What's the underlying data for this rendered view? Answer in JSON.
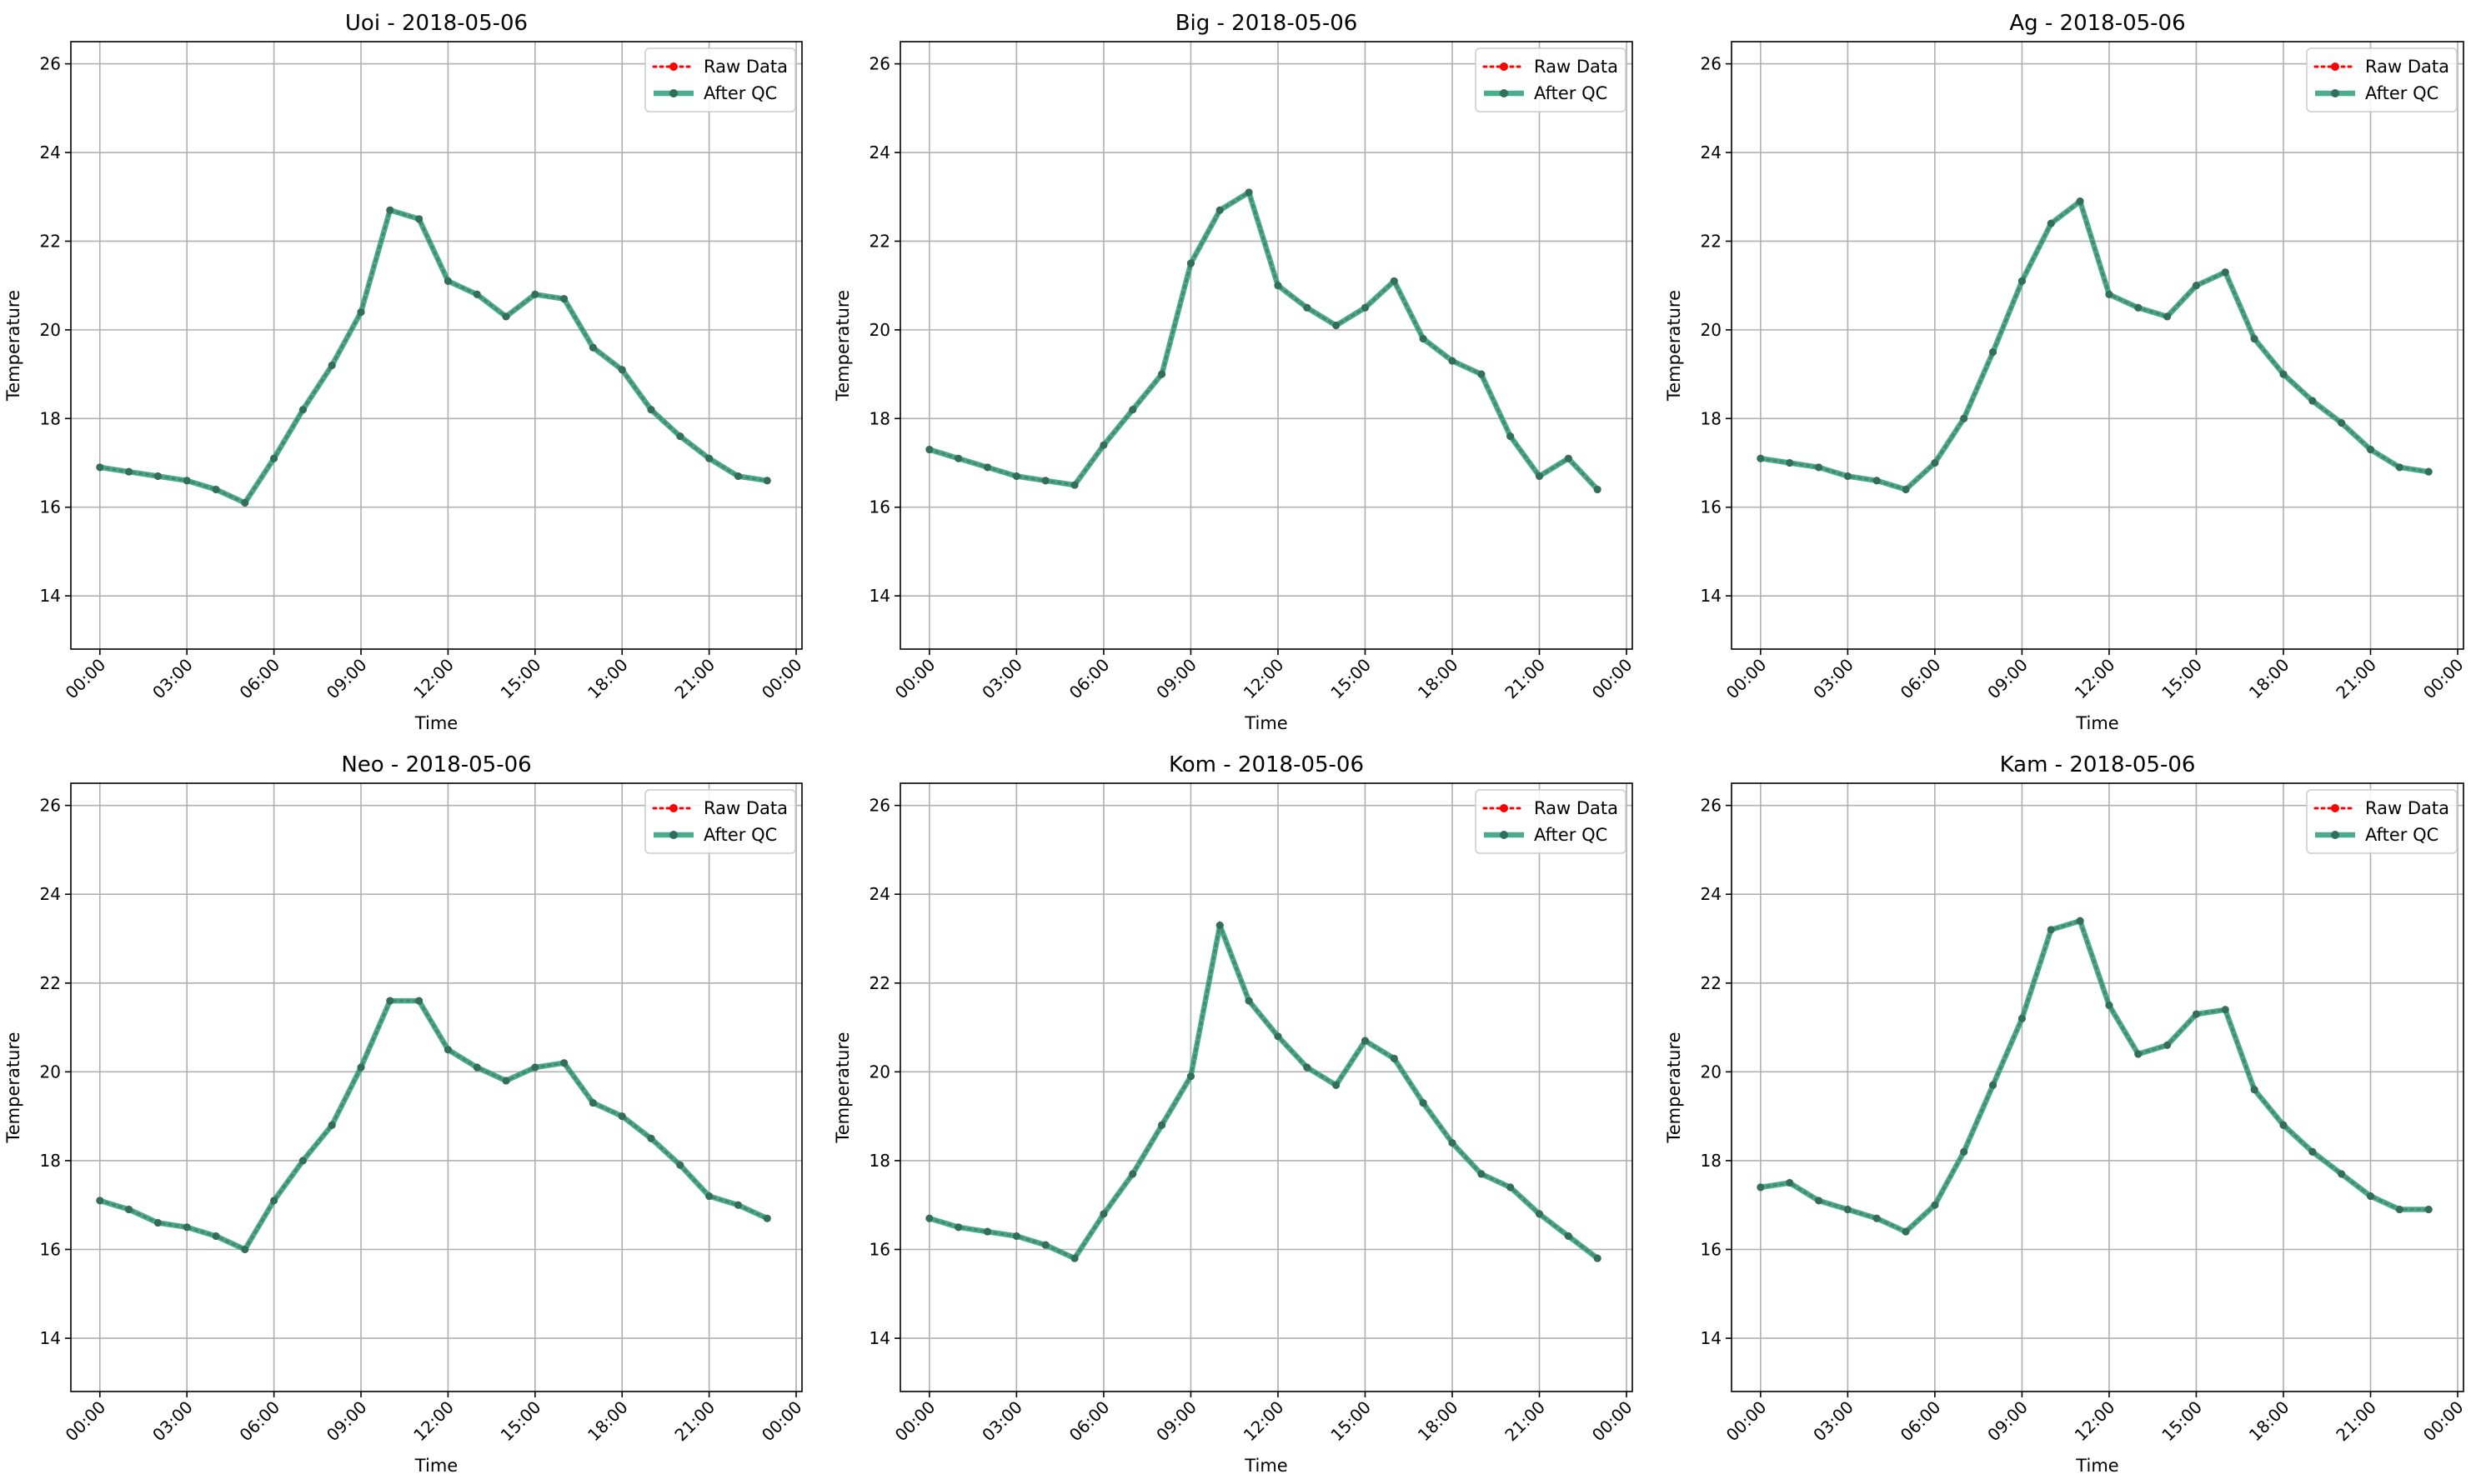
{
  "chart_data": [
    {
      "type": "line",
      "title": "Uoi - 2018-05-06",
      "xlabel": "Time",
      "ylabel": "Temperature",
      "ylim": [
        12.8,
        26.5
      ],
      "yticks": [
        14,
        16,
        18,
        20,
        22,
        24,
        26
      ],
      "xlim": [
        -1.0,
        24.2
      ],
      "xtick_positions": [
        0,
        3,
        6,
        9,
        12,
        15,
        18,
        21,
        24
      ],
      "xtick_labels": [
        "00:00",
        "03:00",
        "06:00",
        "09:00",
        "12:00",
        "15:00",
        "18:00",
        "21:00",
        "00:00"
      ],
      "grid": true,
      "legend_position": "top-right",
      "x": [
        0,
        1,
        2,
        3,
        4,
        5,
        6,
        7,
        8,
        9,
        10,
        11,
        12,
        13,
        14,
        15,
        16,
        17,
        18,
        19,
        20,
        21,
        22,
        23
      ],
      "series": [
        {
          "name": "Raw Data",
          "color": "#ff0000",
          "style": "dotted",
          "values": [
            16.9,
            16.8,
            16.7,
            16.6,
            16.4,
            16.1,
            17.1,
            18.2,
            19.2,
            20.4,
            22.7,
            22.5,
            21.1,
            20.8,
            20.3,
            20.8,
            20.7,
            19.6,
            19.1,
            18.2,
            17.6,
            17.1,
            16.7,
            16.6
          ]
        },
        {
          "name": "After QC",
          "color": "#2a9d7a",
          "style": "solid",
          "values": [
            16.9,
            16.8,
            16.7,
            16.6,
            16.4,
            16.1,
            17.1,
            18.2,
            19.2,
            20.4,
            22.7,
            22.5,
            21.1,
            20.8,
            20.3,
            20.8,
            20.7,
            19.6,
            19.1,
            18.2,
            17.6,
            17.1,
            16.7,
            16.6
          ]
        }
      ]
    },
    {
      "type": "line",
      "title": "Big - 2018-05-06",
      "xlabel": "Time",
      "ylabel": "Temperature",
      "ylim": [
        12.8,
        26.5
      ],
      "yticks": [
        14,
        16,
        18,
        20,
        22,
        24,
        26
      ],
      "xlim": [
        -1.0,
        24.2
      ],
      "xtick_positions": [
        0,
        3,
        6,
        9,
        12,
        15,
        18,
        21,
        24
      ],
      "xtick_labels": [
        "00:00",
        "03:00",
        "06:00",
        "09:00",
        "12:00",
        "15:00",
        "18:00",
        "21:00",
        "00:00"
      ],
      "grid": true,
      "legend_position": "top-right",
      "x": [
        0,
        1,
        2,
        3,
        4,
        5,
        6,
        7,
        8,
        9,
        10,
        11,
        12,
        13,
        14,
        15,
        16,
        17,
        18,
        19,
        20,
        21,
        22,
        23
      ],
      "series": [
        {
          "name": "Raw Data",
          "color": "#ff0000",
          "style": "dotted",
          "values": [
            17.3,
            17.1,
            16.9,
            16.7,
            16.6,
            16.5,
            17.4,
            18.2,
            19.0,
            21.5,
            22.7,
            23.1,
            21.0,
            20.5,
            20.1,
            20.5,
            21.1,
            19.8,
            19.3,
            19.0,
            17.6,
            16.7,
            17.1,
            16.4
          ]
        },
        {
          "name": "After QC",
          "color": "#2a9d7a",
          "style": "solid",
          "values": [
            17.3,
            17.1,
            16.9,
            16.7,
            16.6,
            16.5,
            17.4,
            18.2,
            19.0,
            21.5,
            22.7,
            23.1,
            21.0,
            20.5,
            20.1,
            20.5,
            21.1,
            19.8,
            19.3,
            19.0,
            17.6,
            16.7,
            17.1,
            16.4
          ]
        }
      ]
    },
    {
      "type": "line",
      "title": "Ag - 2018-05-06",
      "xlabel": "Time",
      "ylabel": "Temperature",
      "ylim": [
        12.8,
        26.5
      ],
      "yticks": [
        14,
        16,
        18,
        20,
        22,
        24,
        26
      ],
      "xlim": [
        -1.0,
        24.2
      ],
      "xtick_positions": [
        0,
        3,
        6,
        9,
        12,
        15,
        18,
        21,
        24
      ],
      "xtick_labels": [
        "00:00",
        "03:00",
        "06:00",
        "09:00",
        "12:00",
        "15:00",
        "18:00",
        "21:00",
        "00:00"
      ],
      "grid": true,
      "legend_position": "top-right",
      "x": [
        0,
        1,
        2,
        3,
        4,
        5,
        6,
        7,
        8,
        9,
        10,
        11,
        12,
        13,
        14,
        15,
        16,
        17,
        18,
        19,
        20,
        21,
        22,
        23
      ],
      "series": [
        {
          "name": "Raw Data",
          "color": "#ff0000",
          "style": "dotted",
          "values": [
            17.1,
            17.0,
            16.9,
            16.7,
            16.6,
            16.4,
            17.0,
            18.0,
            19.5,
            21.1,
            22.4,
            22.9,
            20.8,
            20.5,
            20.3,
            21.0,
            21.3,
            19.8,
            19.0,
            18.4,
            17.9,
            17.3,
            16.9,
            16.8
          ]
        },
        {
          "name": "After QC",
          "color": "#2a9d7a",
          "style": "solid",
          "values": [
            17.1,
            17.0,
            16.9,
            16.7,
            16.6,
            16.4,
            17.0,
            18.0,
            19.5,
            21.1,
            22.4,
            22.9,
            20.8,
            20.5,
            20.3,
            21.0,
            21.3,
            19.8,
            19.0,
            18.4,
            17.9,
            17.3,
            16.9,
            16.8
          ]
        }
      ]
    },
    {
      "type": "line",
      "title": "Neo - 2018-05-06",
      "xlabel": "Time",
      "ylabel": "Temperature",
      "ylim": [
        12.8,
        26.5
      ],
      "yticks": [
        14,
        16,
        18,
        20,
        22,
        24,
        26
      ],
      "xlim": [
        -1.0,
        24.2
      ],
      "xtick_positions": [
        0,
        3,
        6,
        9,
        12,
        15,
        18,
        21,
        24
      ],
      "xtick_labels": [
        "00:00",
        "03:00",
        "06:00",
        "09:00",
        "12:00",
        "15:00",
        "18:00",
        "21:00",
        "00:00"
      ],
      "grid": true,
      "legend_position": "top-right",
      "x": [
        0,
        1,
        2,
        3,
        4,
        5,
        6,
        7,
        8,
        9,
        10,
        11,
        12,
        13,
        14,
        15,
        16,
        17,
        18,
        19,
        20,
        21,
        22,
        23
      ],
      "series": [
        {
          "name": "Raw Data",
          "color": "#ff0000",
          "style": "dotted",
          "values": [
            17.1,
            16.9,
            16.6,
            16.5,
            16.3,
            16.0,
            17.1,
            18.0,
            18.8,
            20.1,
            21.6,
            21.6,
            20.5,
            20.1,
            19.8,
            20.1,
            20.2,
            19.3,
            19.0,
            18.5,
            17.9,
            17.2,
            17.0,
            16.7
          ]
        },
        {
          "name": "After QC",
          "color": "#2a9d7a",
          "style": "solid",
          "values": [
            17.1,
            16.9,
            16.6,
            16.5,
            16.3,
            16.0,
            17.1,
            18.0,
            18.8,
            20.1,
            21.6,
            21.6,
            20.5,
            20.1,
            19.8,
            20.1,
            20.2,
            19.3,
            19.0,
            18.5,
            17.9,
            17.2,
            17.0,
            16.7
          ]
        }
      ]
    },
    {
      "type": "line",
      "title": "Kom - 2018-05-06",
      "xlabel": "Time",
      "ylabel": "Temperature",
      "ylim": [
        12.8,
        26.5
      ],
      "yticks": [
        14,
        16,
        18,
        20,
        22,
        24,
        26
      ],
      "xlim": [
        -1.0,
        24.2
      ],
      "xtick_positions": [
        0,
        3,
        6,
        9,
        12,
        15,
        18,
        21,
        24
      ],
      "xtick_labels": [
        "00:00",
        "03:00",
        "06:00",
        "09:00",
        "12:00",
        "15:00",
        "18:00",
        "21:00",
        "00:00"
      ],
      "grid": true,
      "legend_position": "top-right",
      "x": [
        0,
        1,
        2,
        3,
        4,
        5,
        6,
        7,
        8,
        9,
        10,
        11,
        12,
        13,
        14,
        15,
        16,
        17,
        18,
        19,
        20,
        21,
        22,
        23
      ],
      "series": [
        {
          "name": "Raw Data",
          "color": "#ff0000",
          "style": "dotted",
          "values": [
            16.7,
            16.5,
            16.4,
            16.3,
            16.1,
            15.8,
            16.8,
            17.7,
            18.8,
            19.9,
            23.3,
            21.6,
            20.8,
            20.1,
            19.7,
            20.7,
            20.3,
            19.3,
            18.4,
            17.7,
            17.4,
            16.8,
            16.3,
            15.8
          ]
        },
        {
          "name": "After QC",
          "color": "#2a9d7a",
          "style": "solid",
          "values": [
            16.7,
            16.5,
            16.4,
            16.3,
            16.1,
            15.8,
            16.8,
            17.7,
            18.8,
            19.9,
            23.3,
            21.6,
            20.8,
            20.1,
            19.7,
            20.7,
            20.3,
            19.3,
            18.4,
            17.7,
            17.4,
            16.8,
            16.3,
            15.8
          ]
        }
      ]
    },
    {
      "type": "line",
      "title": "Kam - 2018-05-06",
      "xlabel": "Time",
      "ylabel": "Temperature",
      "ylim": [
        12.8,
        26.5
      ],
      "yticks": [
        14,
        16,
        18,
        20,
        22,
        24,
        26
      ],
      "xlim": [
        -1.0,
        24.2
      ],
      "xtick_positions": [
        0,
        3,
        6,
        9,
        12,
        15,
        18,
        21,
        24
      ],
      "xtick_labels": [
        "00:00",
        "03:00",
        "06:00",
        "09:00",
        "12:00",
        "15:00",
        "18:00",
        "21:00",
        "00:00"
      ],
      "grid": true,
      "legend_position": "top-right",
      "x": [
        0,
        1,
        2,
        3,
        4,
        5,
        6,
        7,
        8,
        9,
        10,
        11,
        12,
        13,
        14,
        15,
        16,
        17,
        18,
        19,
        20,
        21,
        22,
        23
      ],
      "series": [
        {
          "name": "Raw Data",
          "color": "#ff0000",
          "style": "dotted",
          "values": [
            17.4,
            17.5,
            17.1,
            16.9,
            16.7,
            16.4,
            17.0,
            18.2,
            19.7,
            21.2,
            23.2,
            23.4,
            21.5,
            20.4,
            20.6,
            21.3,
            21.4,
            19.6,
            18.8,
            18.2,
            17.7,
            17.2,
            16.9,
            16.9
          ]
        },
        {
          "name": "After QC",
          "color": "#2a9d7a",
          "style": "solid",
          "values": [
            17.4,
            17.5,
            17.1,
            16.9,
            16.7,
            16.4,
            17.0,
            18.2,
            19.7,
            21.2,
            23.2,
            23.4,
            21.5,
            20.4,
            20.6,
            21.3,
            21.4,
            19.6,
            18.8,
            18.2,
            17.7,
            17.2,
            16.9,
            16.9
          ]
        }
      ]
    }
  ]
}
